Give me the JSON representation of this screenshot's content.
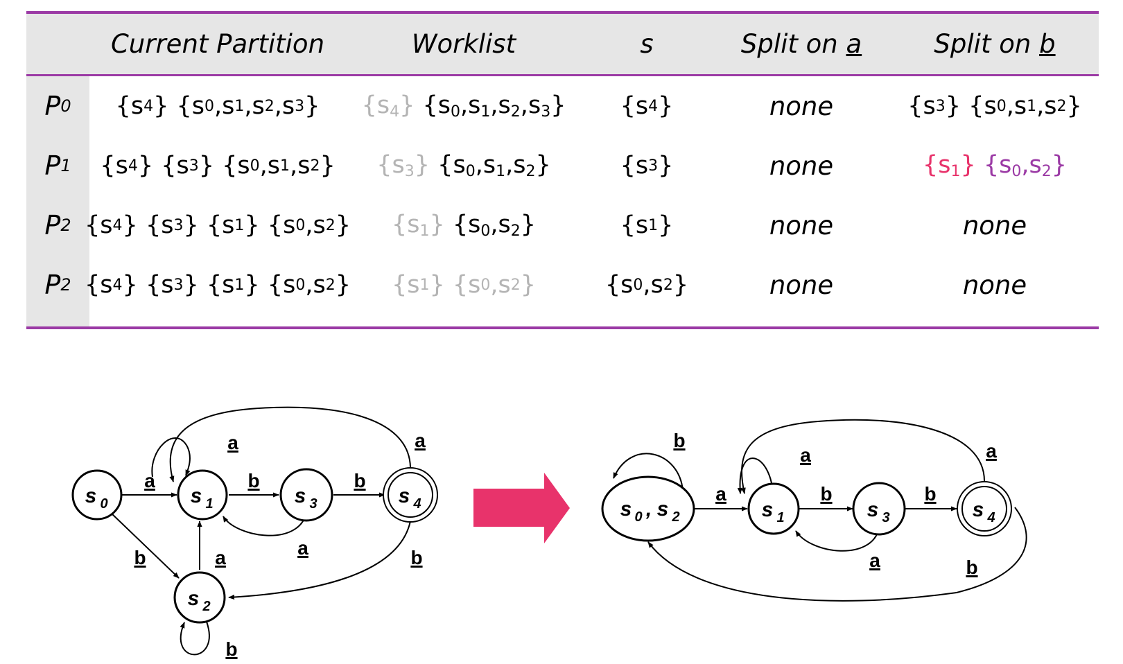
{
  "table": {
    "headers": {
      "partition": "Current Partition",
      "worklist": "Worklist",
      "s": "s",
      "split_a_prefix": "Split on ",
      "split_a_sym": "a",
      "split_b_prefix": "Split on ",
      "split_b_sym": "b"
    },
    "rows": [
      {
        "label": "P",
        "label_sub": "0",
        "partition": "{s4} {s0,s1,s2,s3}",
        "worklist_done": "{s4}",
        "worklist_rest": "{s0,s1,s2,s3}",
        "s": "{s4}",
        "split_a": "none",
        "split_b": "{s3} {s0,s1,s2}"
      },
      {
        "label": "P",
        "label_sub": "1",
        "partition": "{s4} {s3} {s0,s1,s2}",
        "worklist_done": "{s3}",
        "worklist_rest": "{s0,s1,s2}",
        "s": "{s3}",
        "split_a": "none",
        "split_b_1": "{s1}",
        "split_b_2": "{s0,s2}"
      },
      {
        "label": "P",
        "label_sub": "2",
        "partition": "{s4} {s3} {s1} {s0,s2}",
        "worklist_done": "{s1}",
        "worklist_rest": "{s0,s2}",
        "s": "{s1}",
        "split_a": "none",
        "split_b": "none"
      },
      {
        "label": "P",
        "label_sub": "2",
        "partition": "{s4} {s3} {s1} {s0,s2}",
        "worklist_done": "{s1} {s0,s2}",
        "s": "{s0,s2}",
        "split_a": "none",
        "split_b": "none"
      }
    ]
  },
  "diagram": {
    "left_dfa": {
      "states": [
        {
          "name": "s",
          "sub": "0",
          "accepting": false
        },
        {
          "name": "s",
          "sub": "1",
          "accepting": false
        },
        {
          "name": "s",
          "sub": "3",
          "accepting": false
        },
        {
          "name": "s",
          "sub": "4",
          "accepting": true
        },
        {
          "name": "s",
          "sub": "2",
          "accepting": false
        }
      ],
      "edge_labels": {
        "s0_s1": "a",
        "s1_s3": "b",
        "s3_s4": "b",
        "s1_self": "a",
        "s4_s1": "a",
        "s3_s1": "a",
        "s0_s2": "b",
        "s2_s1": "a",
        "s4_s2": "b",
        "s2_self": "b"
      }
    },
    "arrow_color": "#e8336b",
    "right_dfa": {
      "states": [
        {
          "name": "s",
          "sub": "0",
          "name2": "s",
          "sub2": "2",
          "sep": ",",
          "accepting": false
        },
        {
          "name": "s",
          "sub": "1",
          "accepting": false
        },
        {
          "name": "s",
          "sub": "3",
          "accepting": false
        },
        {
          "name": "s",
          "sub": "4",
          "accepting": true
        }
      ],
      "edge_labels": {
        "s02_self": "b",
        "s02_s1": "a",
        "s1_self": "a",
        "s1_s3": "b",
        "s3_s4": "b",
        "s4_s1": "a",
        "s3_s1": "a",
        "s4_s02": "b"
      }
    }
  }
}
